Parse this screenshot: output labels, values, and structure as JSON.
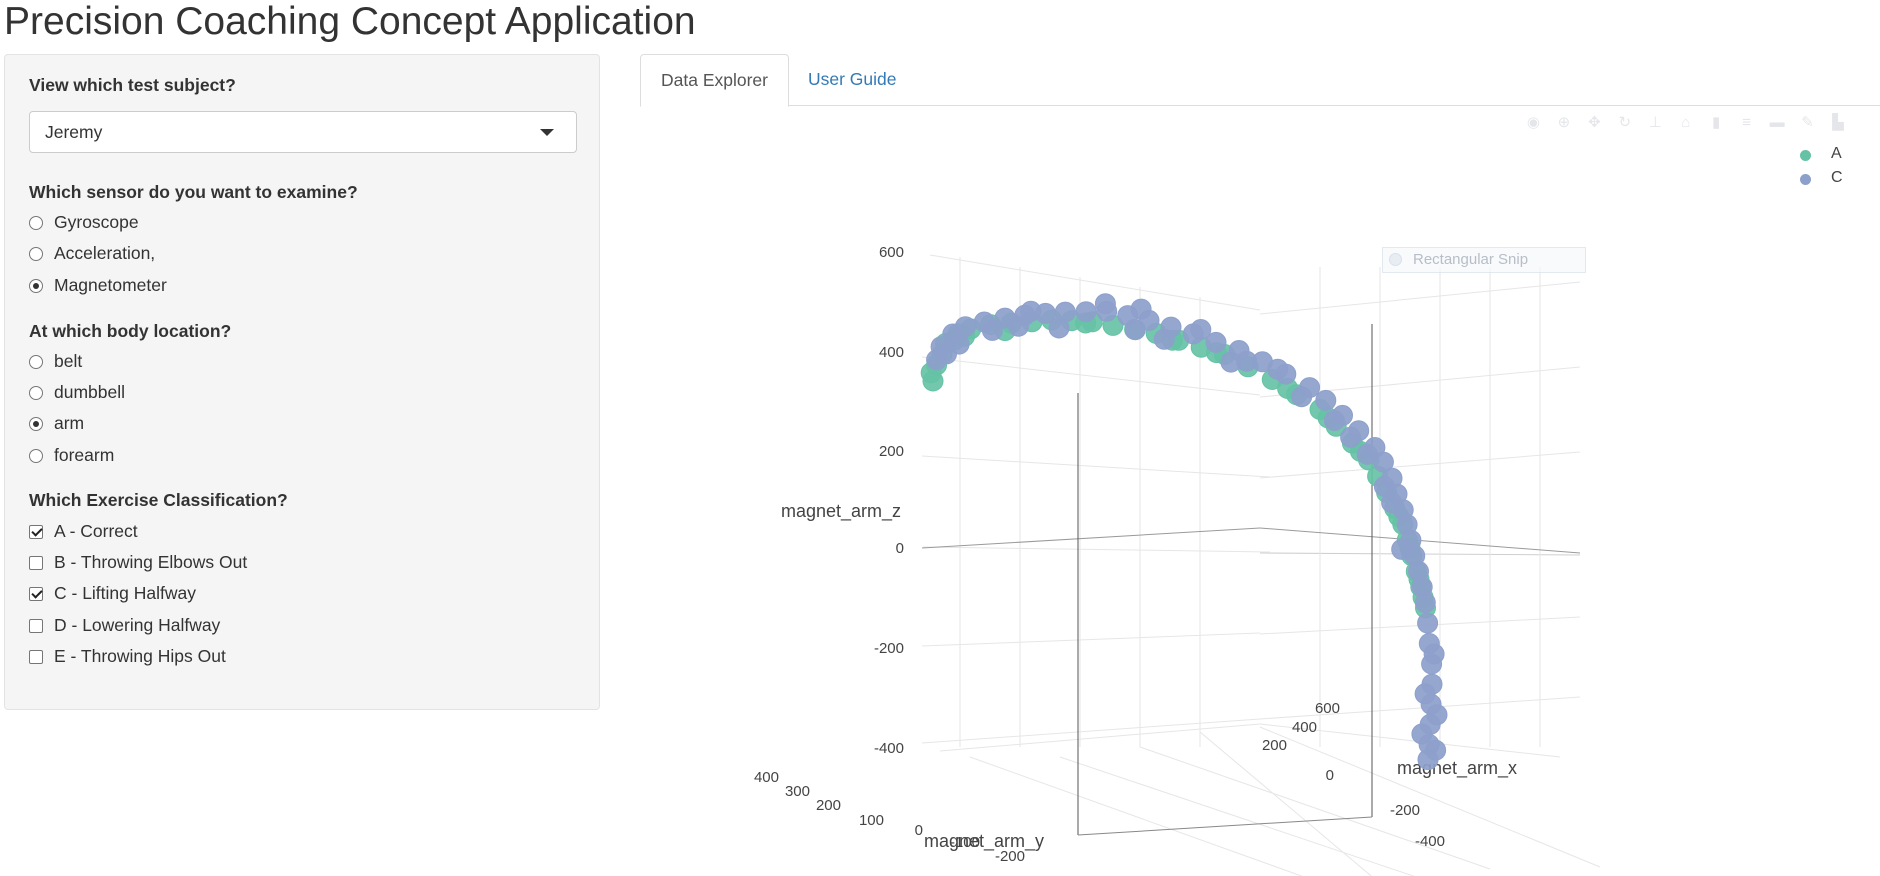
{
  "app": {
    "title": "Precision Coaching Concept Application"
  },
  "sidebar": {
    "subject": {
      "label": "View which test subject?",
      "selected": "Jeremy"
    },
    "sensor": {
      "label": "Which sensor do you want to examine?",
      "options": [
        {
          "label": "Gyroscope",
          "selected": false
        },
        {
          "label": "Acceleration,",
          "selected": false
        },
        {
          "label": "Magnetometer",
          "selected": true
        }
      ]
    },
    "location": {
      "label": "At which body location?",
      "options": [
        {
          "label": "belt",
          "selected": false
        },
        {
          "label": "dumbbell",
          "selected": false
        },
        {
          "label": "arm",
          "selected": true
        },
        {
          "label": "forearm",
          "selected": false
        }
      ]
    },
    "classification": {
      "label": "Which Exercise Classification?",
      "options": [
        {
          "label": "A - Correct",
          "checked": true
        },
        {
          "label": "B - Throwing Elbows Out",
          "checked": false
        },
        {
          "label": "C - Lifting Halfway",
          "checked": true
        },
        {
          "label": "D - Lowering Halfway",
          "checked": false
        },
        {
          "label": "E - Throwing Hips Out",
          "checked": false
        }
      ]
    }
  },
  "tabs": [
    {
      "label": "Data Explorer",
      "active": true
    },
    {
      "label": "User Guide",
      "active": false
    }
  ],
  "overlay": {
    "snip_label": "Rectangular Snip"
  },
  "modebar": {
    "icons": [
      "camera-icon",
      "zoom-icon",
      "pan-icon",
      "orbit-icon",
      "turntable-icon",
      "reset-camera-icon",
      "hover-icon",
      "spike-icon",
      "toggle-icon",
      "edit-icon",
      "plotly-logo-icon"
    ]
  },
  "chart_data": {
    "type": "scatter3d",
    "axes": {
      "x": {
        "title": "magnet_arm_x",
        "ticks": [
          "-400",
          "-200",
          "0",
          "200",
          "400",
          "600"
        ]
      },
      "y": {
        "title": "magnet_arm_y",
        "ticks": [
          "-200",
          "-100",
          "0",
          "100",
          "200",
          "300",
          "400"
        ]
      },
      "z": {
        "title": "magnet_arm_z",
        "ticks": [
          "-400",
          "-200",
          "0",
          "200",
          "400",
          "600"
        ],
        "range": [
          -400,
          600
        ]
      }
    },
    "legend": {
      "placement": "top-right"
    },
    "series": [
      {
        "name": "A",
        "color": "#66c2a5",
        "points": [
          [
            -300,
            100,
            330
          ],
          [
            -300,
            110,
            345
          ],
          [
            -290,
            120,
            360
          ],
          [
            -280,
            130,
            380
          ],
          [
            -270,
            150,
            400
          ],
          [
            -250,
            160,
            420
          ],
          [
            -230,
            170,
            430
          ],
          [
            -200,
            180,
            440
          ],
          [
            -170,
            185,
            445
          ],
          [
            -140,
            190,
            450
          ],
          [
            -110,
            200,
            455
          ],
          [
            -80,
            210,
            455
          ],
          [
            -50,
            215,
            455
          ],
          [
            -20,
            220,
            450
          ],
          [
            10,
            220,
            445
          ],
          [
            40,
            220,
            440
          ],
          [
            70,
            215,
            430
          ],
          [
            100,
            210,
            420
          ],
          [
            130,
            200,
            410
          ],
          [
            160,
            190,
            390
          ],
          [
            190,
            175,
            370
          ],
          [
            220,
            160,
            345
          ],
          [
            250,
            150,
            320
          ],
          [
            270,
            140,
            290
          ],
          [
            290,
            130,
            260
          ],
          [
            310,
            120,
            230
          ],
          [
            320,
            110,
            200
          ],
          [
            330,
            100,
            170
          ],
          [
            340,
            95,
            140
          ],
          [
            350,
            90,
            110
          ],
          [
            355,
            85,
            80
          ],
          [
            360,
            80,
            50
          ],
          [
            365,
            75,
            20
          ],
          [
            370,
            70,
            -10
          ],
          [
            372,
            65,
            -30
          ],
          [
            374,
            60,
            -50
          ],
          [
            -260,
            140,
            410
          ],
          [
            -180,
            180,
            430
          ],
          [
            60,
            210,
            430
          ],
          [
            210,
            170,
            355
          ],
          [
            300,
            125,
            245
          ],
          [
            345,
            92,
            125
          ],
          [
            358,
            82,
            65
          ],
          [
            368,
            72,
            5
          ],
          [
            -240,
            165,
            415
          ],
          [
            -60,
            212,
            452
          ],
          [
            120,
            205,
            412
          ],
          [
            260,
            145,
            305
          ]
        ]
      },
      {
        "name": "C",
        "color": "#8da0cb",
        "points": [
          [
            -290,
            120,
            370
          ],
          [
            -280,
            135,
            395
          ],
          [
            -260,
            150,
            420
          ],
          [
            -240,
            160,
            435
          ],
          [
            -210,
            175,
            445
          ],
          [
            -180,
            180,
            455
          ],
          [
            -150,
            190,
            462
          ],
          [
            -120,
            195,
            468
          ],
          [
            -90,
            205,
            472
          ],
          [
            -60,
            210,
            475
          ],
          [
            -30,
            215,
            478
          ],
          [
            0,
            218,
            472
          ],
          [
            30,
            220,
            465
          ],
          [
            60,
            218,
            455
          ],
          [
            90,
            214,
            445
          ],
          [
            120,
            208,
            432
          ],
          [
            150,
            200,
            420
          ],
          [
            180,
            190,
            402
          ],
          [
            210,
            180,
            382
          ],
          [
            240,
            168,
            360
          ],
          [
            260,
            158,
            338
          ],
          [
            280,
            145,
            312
          ],
          [
            300,
            135,
            285
          ],
          [
            320,
            125,
            255
          ],
          [
            330,
            118,
            228
          ],
          [
            340,
            110,
            198
          ],
          [
            345,
            102,
            168
          ],
          [
            352,
            96,
            138
          ],
          [
            356,
            90,
            110
          ],
          [
            360,
            85,
            80
          ],
          [
            364,
            80,
            50
          ],
          [
            368,
            75,
            20
          ],
          [
            372,
            70,
            -10
          ],
          [
            375,
            65,
            -40
          ],
          [
            377,
            60,
            -80
          ],
          [
            378,
            55,
            -120
          ],
          [
            380,
            50,
            -160
          ],
          [
            380,
            48,
            -200
          ],
          [
            378,
            45,
            -240
          ],
          [
            376,
            42,
            -280
          ],
          [
            374,
            40,
            -320
          ],
          [
            372,
            38,
            -350
          ],
          [
            384,
            52,
            -140
          ],
          [
            370,
            46,
            -220
          ],
          [
            386,
            44,
            -260
          ],
          [
            364,
            40,
            -300
          ],
          [
            382,
            36,
            -330
          ],
          [
            -270,
            145,
            380
          ],
          [
            -200,
            170,
            430
          ],
          [
            -100,
            200,
            440
          ],
          [
            50,
            215,
            430
          ],
          [
            140,
            205,
            395
          ],
          [
            230,
            172,
            340
          ],
          [
            310,
            128,
            240
          ],
          [
            338,
            104,
            150
          ],
          [
            348,
            88,
            60
          ],
          [
            -30,
            222,
            492
          ],
          [
            20,
            224,
            486
          ],
          [
            -140,
            196,
            470
          ],
          [
            100,
            212,
            455
          ],
          [
            200,
            185,
            390
          ],
          [
            270,
            150,
            300
          ],
          [
            -250,
            155,
            400
          ],
          [
            -160,
            185,
            440
          ],
          [
            10,
            216,
            445
          ],
          [
            160,
            198,
            400
          ],
          [
            290,
            140,
            270
          ],
          [
            330,
            112,
            180
          ]
        ]
      }
    ]
  }
}
